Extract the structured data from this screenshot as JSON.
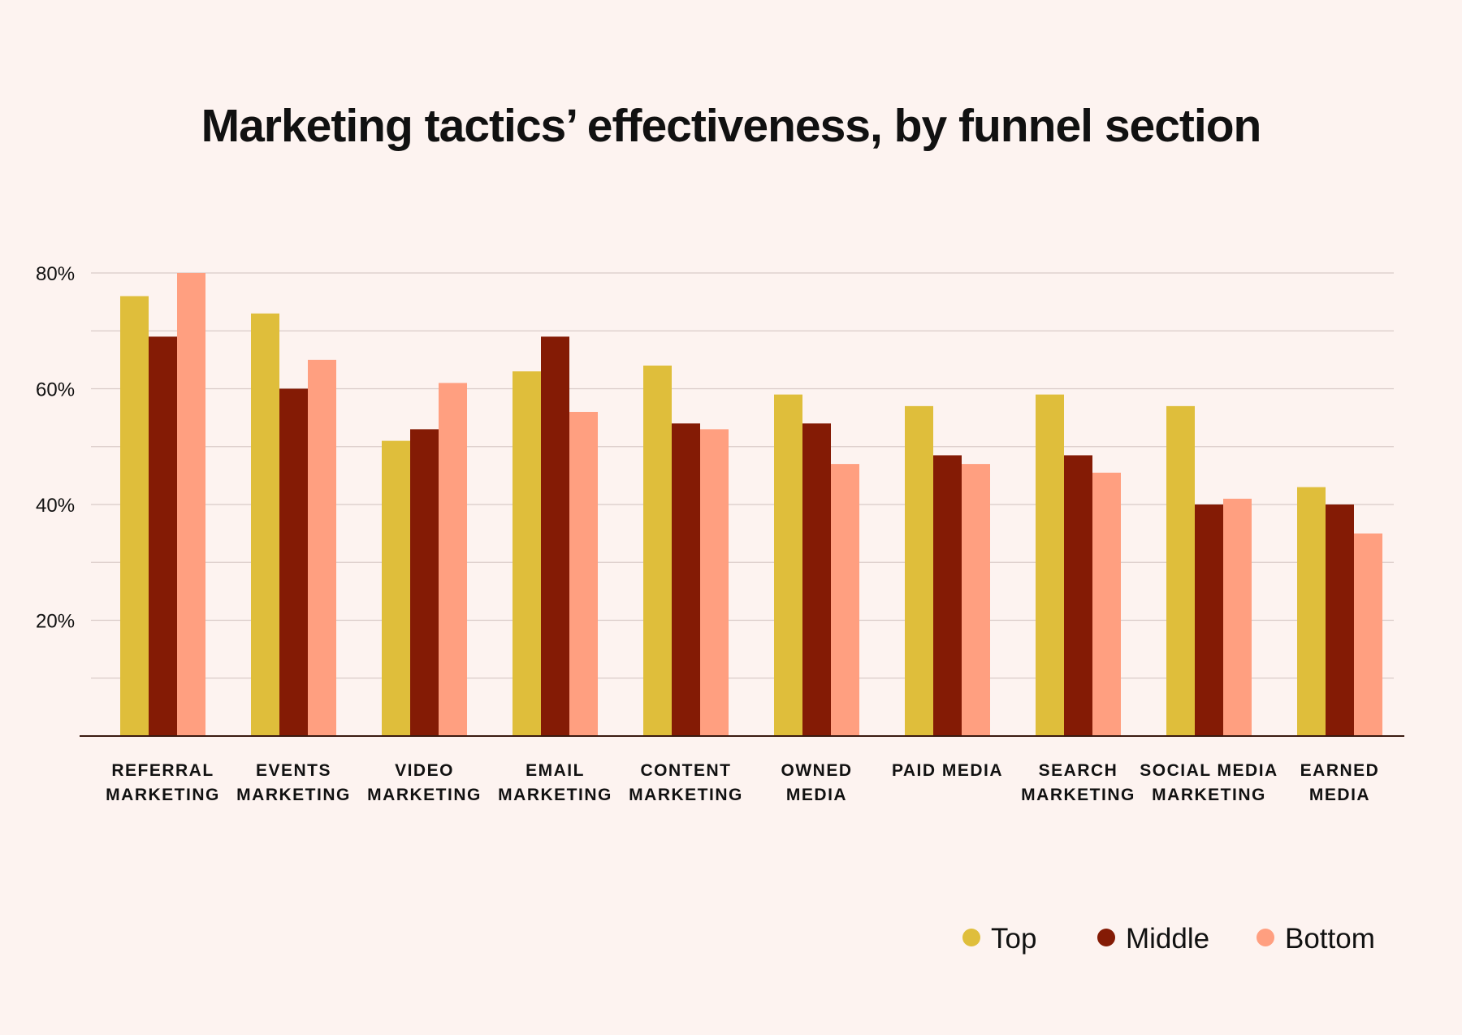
{
  "chart_data": {
    "type": "bar",
    "title": "Marketing tactics’ effectiveness, by funnel section",
    "xlabel": "",
    "ylabel": "",
    "ylim": [
      0,
      80
    ],
    "yticks": [
      "20%",
      "40%",
      "60%",
      "80%"
    ],
    "grid": true,
    "legend_placement": "bottom-right",
    "categories": [
      [
        "REFERRAL",
        "MARKETING"
      ],
      [
        "EVENTS",
        "MARKETING"
      ],
      [
        "VIDEO",
        "MARKETING"
      ],
      [
        "EMAIL",
        "MARKETING"
      ],
      [
        "CONTENT",
        "MARKETING"
      ],
      [
        "OWNED",
        "MEDIA"
      ],
      [
        "PAID MEDIA"
      ],
      [
        "SEARCH",
        "MARKETING"
      ],
      [
        "SOCIAL MEDIA",
        "MARKETING"
      ],
      [
        "EARNED",
        "MEDIA"
      ]
    ],
    "series": [
      {
        "name": "Top",
        "color": "#DFBE3B",
        "values": [
          76,
          73,
          51,
          63,
          64,
          59,
          57,
          59,
          57,
          43
        ]
      },
      {
        "name": "Middle",
        "color": "#841B05",
        "values": [
          69,
          60,
          53,
          69,
          54,
          54,
          48.5,
          48.5,
          40,
          40
        ]
      },
      {
        "name": "Bottom",
        "color": "#FF9F80",
        "values": [
          80,
          65,
          61,
          56,
          53,
          47,
          47,
          45.5,
          41,
          35
        ]
      }
    ]
  }
}
